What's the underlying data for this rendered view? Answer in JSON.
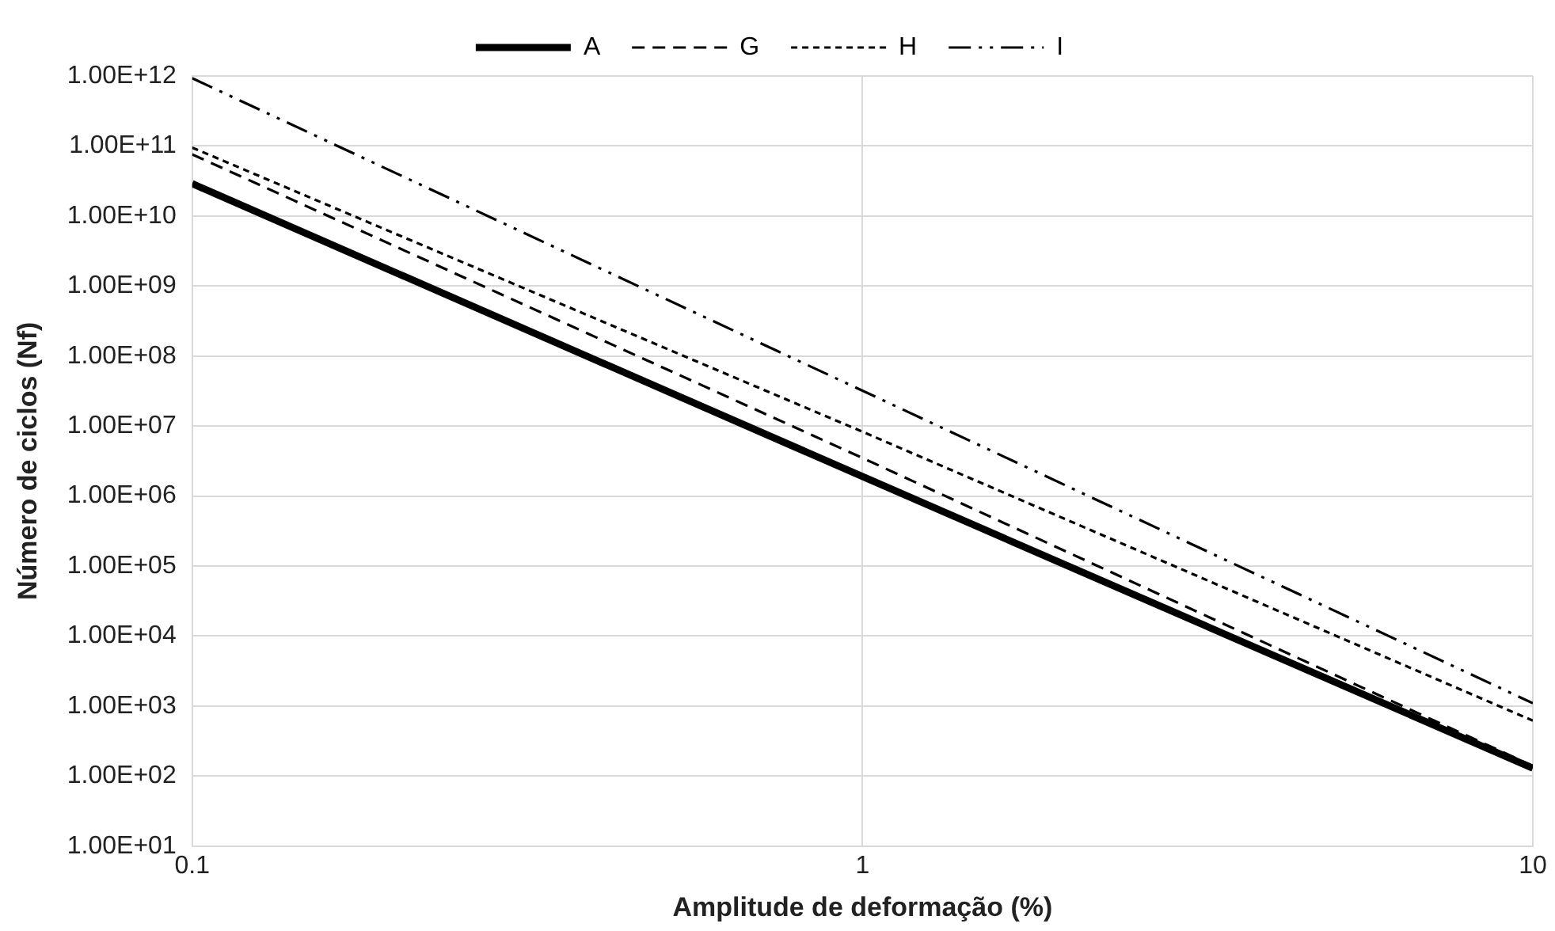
{
  "chart_data": {
    "type": "line",
    "xlabel": "Amplitude de deformação (%)",
    "ylabel": "Número de ciclos (Nf)",
    "log": "xy",
    "grid": true,
    "legend": "top",
    "marker": "none",
    "x": [
      0.1,
      1,
      10
    ],
    "series": [
      {
        "name": "A",
        "color": "#000000",
        "line_style": "solid",
        "values": [
          29000000000.0,
          1900000.0,
          130.0
        ]
      },
      {
        "name": "G",
        "color": "#000000",
        "line_style": "dashed",
        "values": [
          76000000000.0,
          3500000.0,
          140.0
        ]
      },
      {
        "name": "H",
        "color": "#000000",
        "line_style": "dotted",
        "values": [
          95000000000.0,
          8300000.0,
          620.0
        ]
      },
      {
        "name": "I",
        "color": "#000000",
        "line_style": "dashdot",
        "values": [
          930000000000.0,
          32000000.0,
          1100.0
        ]
      }
    ],
    "xlim": [
      0.1,
      10
    ],
    "xticks": [
      0.1,
      1,
      10
    ],
    "ylim": [
      10,
      1000000000000.0
    ],
    "yticks": [
      {
        "value": 10,
        "label": "1.00E+01"
      },
      {
        "value": 100,
        "label": "1.00E+02"
      },
      {
        "value": 1000,
        "label": "1.00E+03"
      },
      {
        "value": 10000,
        "label": "1.00E+04"
      },
      {
        "value": 100000,
        "label": "1.00E+05"
      },
      {
        "value": 1000000,
        "label": "1.00E+06"
      },
      {
        "value": 10000000,
        "label": "1.00E+07"
      },
      {
        "value": 100000000,
        "label": "1.00E+08"
      },
      {
        "value": 1000000000,
        "label": "1.00E+09"
      },
      {
        "value": 10000000000,
        "label": "1.00E+10"
      },
      {
        "value": 100000000000,
        "label": "1.00E+11"
      },
      {
        "value": 1000000000000,
        "label": "1.00E+12"
      }
    ]
  }
}
